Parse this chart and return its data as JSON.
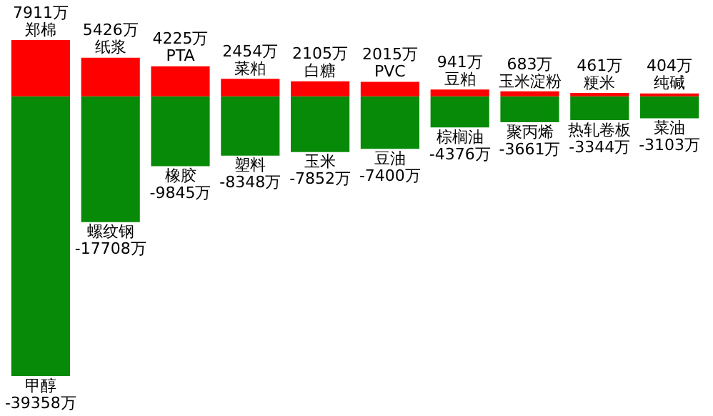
{
  "chart_data": {
    "type": "bar",
    "stacked": true,
    "categories": [
      null,
      null,
      null,
      null,
      null,
      null,
      null,
      null,
      null,
      null
    ],
    "series": [
      {
        "color": "#ff0000",
        "values": [
          7911,
          5426,
          4225,
          2454,
          2105,
          2015,
          941,
          683,
          461,
          404
        ],
        "value_labels": [
          "7911万",
          "5426万",
          "4225万",
          "2454万",
          "2105万",
          "2015万",
          "941万",
          "683万",
          "461万",
          "404万"
        ]
      },
      {
        "color": "#078a07",
        "values": [
          -39358,
          -17708,
          -9845,
          -8348,
          -7852,
          -7400,
          -4376,
          -3661,
          -3344,
          -3103
        ],
        "value_labels": [
          "-39358万",
          "-17708万",
          "-9845万",
          "-8348万",
          "-7852万",
          "-7400万",
          "-4376万",
          "-3661万",
          "-3344万",
          "-3103万"
        ]
      }
    ],
    "annotations": [
      "郑棉",
      "纸浆",
      "PTA",
      "菜粕",
      "白糖",
      "PVC",
      "豆粕",
      "玉米淀粉",
      "粳米",
      "纯碱",
      "甲醇",
      "螺纹钢",
      "橡胶",
      "塑料",
      "玉米",
      "豆油",
      "棕榈油",
      "聚丙烯",
      "热轧卷板",
      "菜油"
    ]
  }
}
